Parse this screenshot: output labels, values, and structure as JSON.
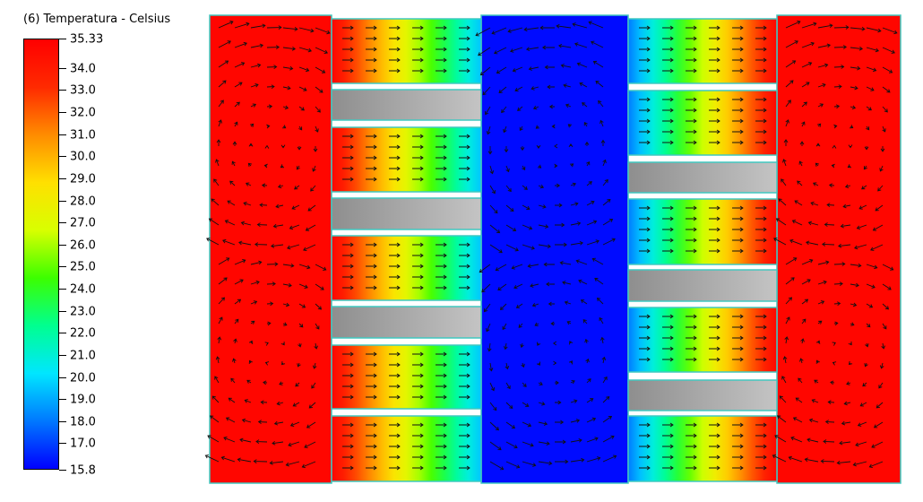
{
  "chart_data": {
    "type": "heatmap",
    "title": "(6) Temperatura - Celsius",
    "colorbar": {
      "min": 15.8,
      "max": 35.33,
      "max_label": "35.33",
      "min_label": "15.8",
      "ticks": [
        "34.0",
        "33.0",
        "32.0",
        "31.0",
        "30.0",
        "29.0",
        "28.0",
        "27.0",
        "26.0",
        "25.0",
        "24.0",
        "23.0",
        "22.0",
        "21.0",
        "20.0",
        "19.0",
        "18.0",
        "17.0"
      ],
      "colors": [
        "#0000ff",
        "#0078ff",
        "#00e6ff",
        "#00ff90",
        "#3cff00",
        "#d8ff00",
        "#ffe000",
        "#ff8c00",
        "#ff2a00",
        "#ff0000"
      ]
    },
    "regions": {
      "left_chamber_temp": 35.0,
      "center_chamber_temp": 16.0,
      "right_chamber_temp": 35.0,
      "left_channels": {
        "count": 5,
        "inlet_temp": 35.0,
        "outlet_temp": 19.5,
        "flow_direction": "left-to-right"
      },
      "right_channels": {
        "count": 5,
        "inlet_temp": 18.0,
        "outlet_temp": 35.0,
        "flow_direction": "left-to-right"
      },
      "plate_color": "#a6a6a6",
      "outline_color": "#40c8c0"
    }
  }
}
